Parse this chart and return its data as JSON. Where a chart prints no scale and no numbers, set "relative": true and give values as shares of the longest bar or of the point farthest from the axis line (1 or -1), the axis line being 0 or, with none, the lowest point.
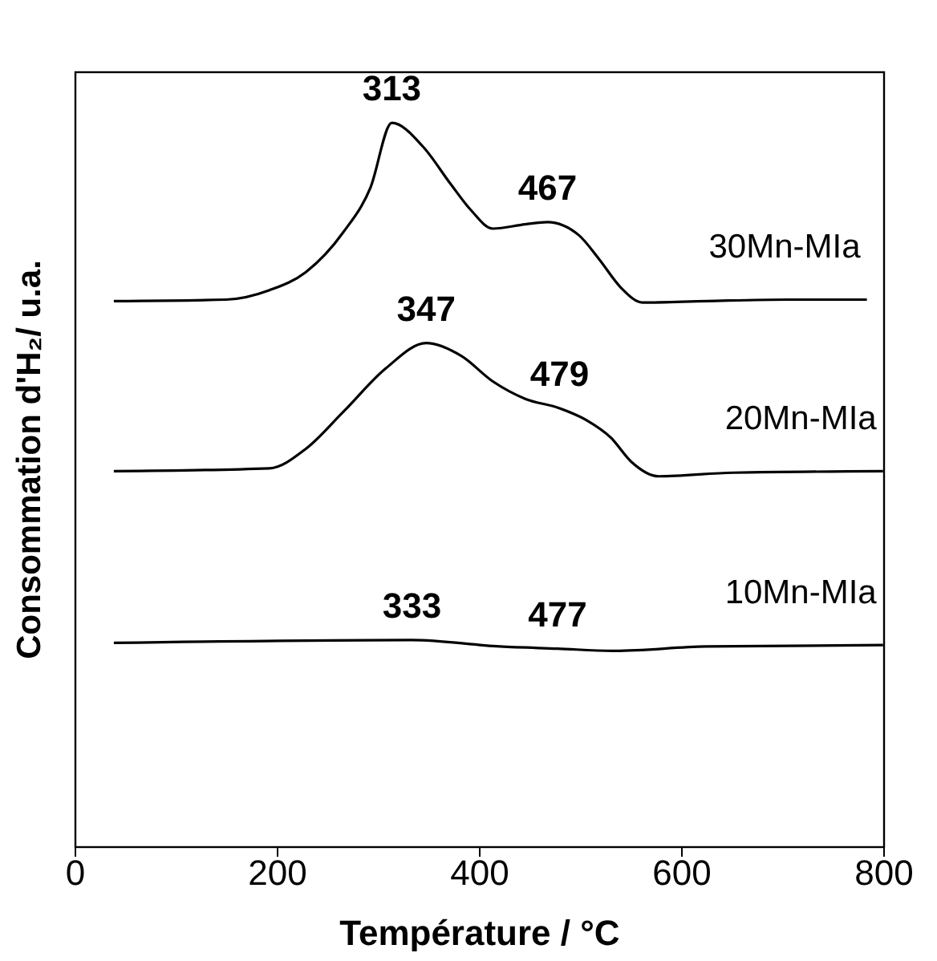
{
  "chart_data": {
    "type": "line",
    "relative": true,
    "xlabel": "Température / °C",
    "ylabel": "Consommation d'H₂/ u.a.",
    "xlim": [
      0,
      800
    ],
    "xticks": [
      0,
      200,
      400,
      600,
      800
    ],
    "marker": "none",
    "line_style": "solid",
    "grid": false,
    "legend": false,
    "series": [
      {
        "name": "30Mn-MIa",
        "color": "#000000",
        "x": [
          38,
          149,
          192,
          228,
          265,
          292,
          313,
          344,
          371,
          391,
          413,
          445,
          467,
          498,
          518,
          540,
          561,
          624,
          704,
          783
        ],
        "values": [
          0.754,
          0.756,
          0.769,
          0.794,
          0.849,
          0.911,
          1,
          0.967,
          0.916,
          0.88,
          0.854,
          0.86,
          0.863,
          0.845,
          0.812,
          0.772,
          0.752,
          0.754,
          0.756,
          0.756
        ]
      },
      {
        "name": "20Mn-MIa",
        "color": "#000000",
        "x": [
          38,
          192,
          228,
          265,
          307,
          347,
          382,
          413,
          445,
          479,
          505,
          530,
          550,
          577,
          651,
          799
        ],
        "values": [
          0.519,
          0.523,
          0.55,
          0.601,
          0.661,
          0.696,
          0.678,
          0.643,
          0.619,
          0.606,
          0.59,
          0.565,
          0.532,
          0.512,
          0.517,
          0.519
        ]
      },
      {
        "name": "10Mn-MIa",
        "color": "#000000",
        "x": [
          38,
          333,
          420,
          477,
          534,
          624,
          799
        ],
        "values": [
          0.282,
          0.286,
          0.277,
          0.274,
          0.271,
          0.277,
          0.279
        ]
      }
    ],
    "annotations": [
      {
        "text": "313",
        "x": 313,
        "y": 1
      },
      {
        "text": "467",
        "x": 467,
        "y": 0.863
      },
      {
        "text": "347",
        "x": 347,
        "y": 0.696
      },
      {
        "text": "479",
        "x": 479,
        "y": 0.606
      },
      {
        "text": "333",
        "x": 333,
        "y": 0.286
      },
      {
        "text": "477",
        "x": 477,
        "y": 0.274
      }
    ]
  }
}
